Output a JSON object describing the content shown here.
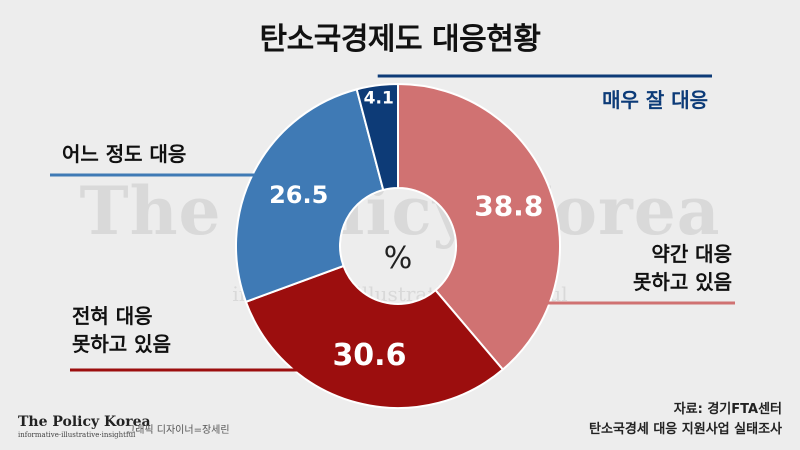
{
  "title": "탄소국경제도 대응현황",
  "watermark": {
    "main": "The Policy Korea",
    "sub": "informative illustrative insightful"
  },
  "center_symbol": "%",
  "chart_data": {
    "type": "pie",
    "donut": true,
    "unit": "%",
    "start_angle_deg": 0,
    "direction": "clockwise",
    "slices": [
      {
        "label_lines": [
          "약간 대응",
          "못하고 있음"
        ],
        "value": 38.8,
        "color": "#d07272"
      },
      {
        "label_lines": [
          "전혀 대응",
          "못하고 있음"
        ],
        "value": 30.6,
        "color": "#9c0e0e"
      },
      {
        "label_lines": [
          "어느 정도 대응"
        ],
        "value": 26.5,
        "color": "#3f7ab5"
      },
      {
        "label_lines": [
          "매우 잘 대응"
        ],
        "value": 4.1,
        "color": "#0d3b77"
      }
    ],
    "value_labels": [
      "38.8",
      "30.6",
      "26.5",
      "4.1"
    ]
  },
  "labels": {
    "top": "매우 잘 대응",
    "mid_left": "어느 정도 대응",
    "right_1": "약간 대응",
    "right_2": "못하고 있음",
    "left_1": "전혀 대응",
    "left_2": "못하고 있음"
  },
  "brand": {
    "name": "The Policy Korea",
    "tagline": "informative·illustrative·insightful"
  },
  "credit": "그래픽 디자이너=장세린",
  "source": {
    "line1": "자료: 경기FTA센터",
    "line2": "탄소국경세 대응 지원사업 실태조사"
  }
}
